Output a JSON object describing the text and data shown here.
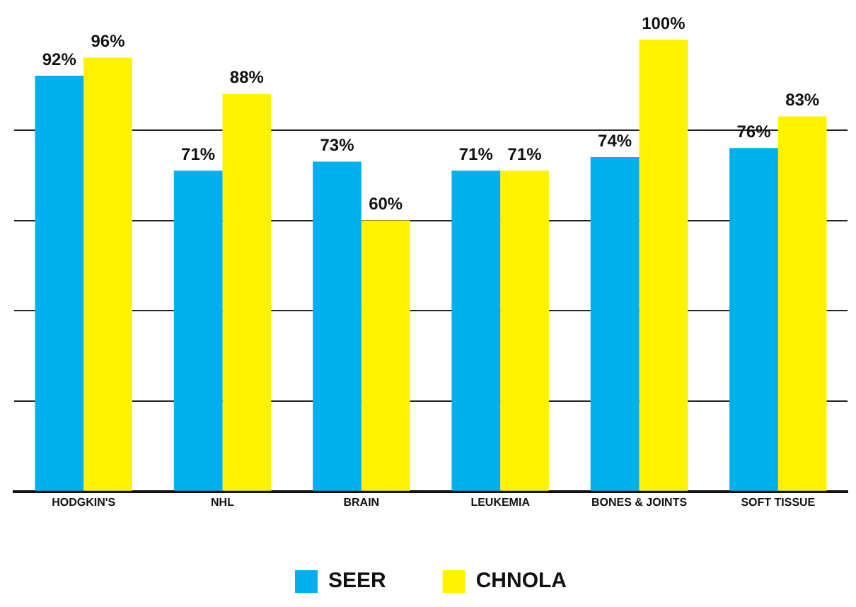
{
  "chart_data": {
    "type": "bar",
    "categories": [
      "HODGKIN'S",
      "NHL",
      "BRAIN",
      "LEUKEMIA",
      "BONES & JOINTS",
      "SOFT TISSUE"
    ],
    "series": [
      {
        "name": "SEER",
        "color": "#00b0ec",
        "values": [
          92,
          71,
          73,
          71,
          74,
          76
        ],
        "value_labels": [
          "92%",
          "71%",
          "73%",
          "71%",
          "74%",
          "76%"
        ]
      },
      {
        "name": "CHNOLA",
        "color": "#fff200",
        "values": [
          96,
          88,
          60,
          71,
          100,
          83
        ],
        "value_labels": [
          "96%",
          "88%",
          "60%",
          "71%",
          "100%",
          "83%"
        ]
      }
    ],
    "ylim": [
      0,
      100
    ],
    "yticks": [
      0,
      20,
      40,
      60,
      80
    ],
    "grid": "y",
    "tick_labels": "x",
    "legend": "bottom"
  }
}
